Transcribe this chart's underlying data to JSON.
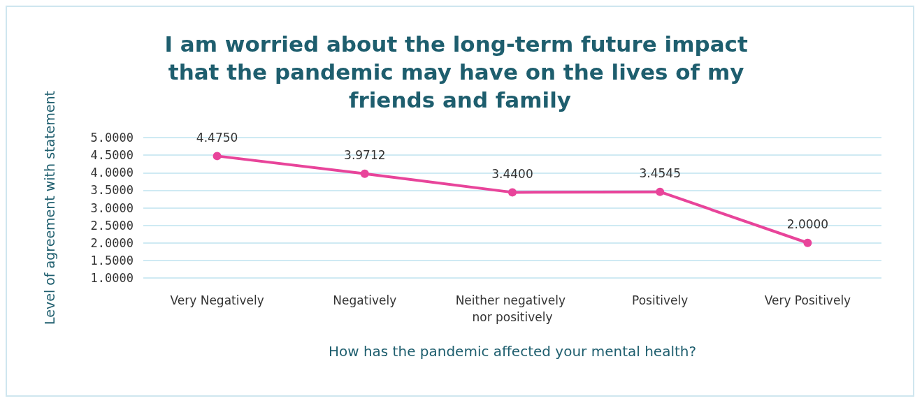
{
  "chart_data": {
    "type": "line",
    "title": "I am worried about the long-term future impact that the pandemic may have on the lives of my friends and family",
    "xlabel": "How has the pandemic affected your mental health?",
    "ylabel": "Level of agreement with statement",
    "categories": [
      "Very Negatively",
      "Negatively",
      "Neither negatively nor positively",
      "Positively",
      "Very Positively"
    ],
    "series": [
      {
        "color": "#e8449a",
        "values": [
          4.475,
          3.9712,
          3.44,
          3.4545,
          2.0
        ],
        "value_labels": [
          "4.4750",
          "3.9712",
          "3.4400",
          "3.4545",
          "2.0000"
        ]
      }
    ],
    "ylim": [
      1,
      5
    ],
    "yticks": [
      {
        "value": 1,
        "label": "1.0000"
      },
      {
        "value": 1.5,
        "label": "1.5000"
      },
      {
        "value": 2,
        "label": "2.0000"
      },
      {
        "value": 2.5,
        "label": "2.5000"
      },
      {
        "value": 3,
        "label": "3.0000"
      },
      {
        "value": 3.5,
        "label": "3.5000"
      },
      {
        "value": 4,
        "label": "4.0000"
      },
      {
        "value": 4.5,
        "label": "4.5000"
      },
      {
        "value": 5,
        "label": "5.0000"
      }
    ],
    "grid": "y",
    "marker": "circle",
    "line_style": "solid"
  }
}
